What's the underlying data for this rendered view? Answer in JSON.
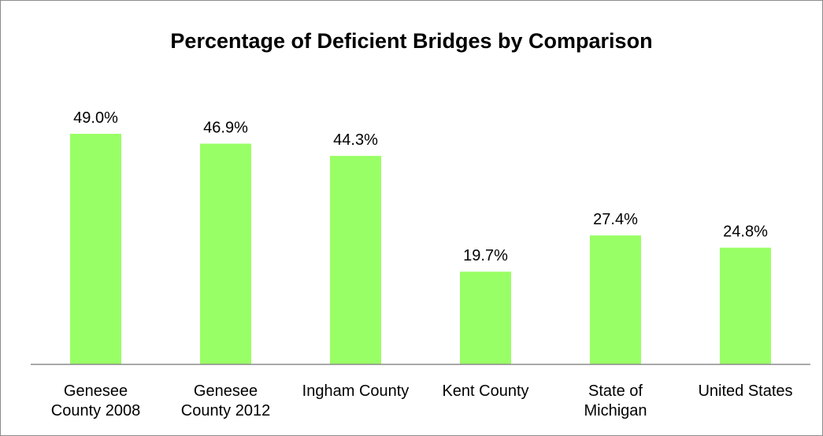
{
  "chart_data": {
    "type": "bar",
    "title": "Percentage of Deficient Bridges by Comparison",
    "categories": [
      "Genesee\nCounty  2008",
      "Genesee\nCounty  2012",
      "Ingham County",
      "Kent County",
      "State of\nMichigan",
      "United States"
    ],
    "values": [
      49.0,
      46.9,
      44.3,
      19.7,
      27.4,
      24.8
    ],
    "value_labels": [
      "49.0%",
      "46.9%",
      "44.3%",
      "19.7%",
      "27.4%",
      "24.8%"
    ],
    "color": "#99ff66"
  }
}
